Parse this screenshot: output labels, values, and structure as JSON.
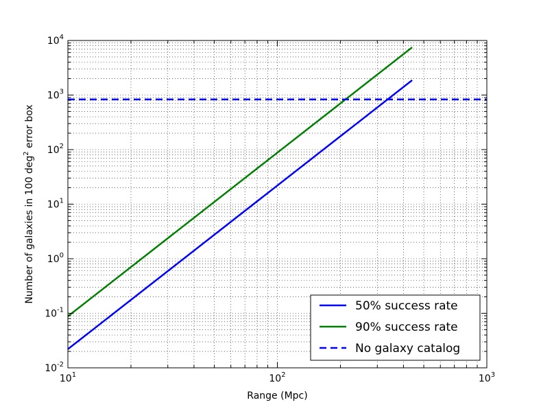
{
  "chart_data": {
    "type": "line",
    "title": "",
    "xlabel": "Range (Mpc)",
    "ylabel": {
      "before": "Number of galaxies in 100 deg",
      "sup": "2",
      "after": " error box"
    },
    "xscale": "log",
    "yscale": "log",
    "xlim": [
      10,
      1000
    ],
    "ylim": [
      0.01,
      10000
    ],
    "grid": "major and minor, dotted",
    "legend_position": "bottom-right",
    "x_ticks": [
      {
        "value": 10,
        "base": "10",
        "exp": "1"
      },
      {
        "value": 100,
        "base": "10",
        "exp": "2"
      },
      {
        "value": 1000,
        "base": "10",
        "exp": "3"
      }
    ],
    "y_ticks": [
      {
        "value": 0.01,
        "base": "10",
        "exp": "-2"
      },
      {
        "value": 0.1,
        "base": "10",
        "exp": "-1"
      },
      {
        "value": 1,
        "base": "10",
        "exp": "0"
      },
      {
        "value": 10,
        "base": "10",
        "exp": "1"
      },
      {
        "value": 100,
        "base": "10",
        "exp": "2"
      },
      {
        "value": 1000,
        "base": "10",
        "exp": "3"
      },
      {
        "value": 10000,
        "base": "10",
        "exp": "4"
      }
    ],
    "series": [
      {
        "name": "50% success rate",
        "color": "#0000ff",
        "style": "solid",
        "x": [
          10,
          440
        ],
        "y": [
          0.022,
          1870
        ]
      },
      {
        "name": "90% success rate",
        "color": "#008000",
        "style": "solid",
        "x": [
          10,
          440
        ],
        "y": [
          0.088,
          7480
        ]
      },
      {
        "name": "No galaxy catalog",
        "color": "#0000ff",
        "style": "dashed",
        "x": [
          10,
          1000
        ],
        "y": [
          830,
          830
        ]
      }
    ]
  }
}
